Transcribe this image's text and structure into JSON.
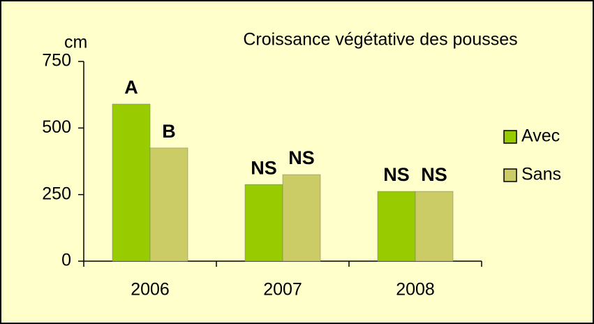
{
  "chart_data": {
    "type": "bar",
    "title": "Croissance végétative des pousses",
    "y_label": "cm",
    "categories": [
      "2006",
      "2007",
      "2008"
    ],
    "series": [
      {
        "name": "Avec",
        "color": "#99cc00",
        "values": [
          590,
          288,
          262
        ],
        "annotations": [
          "A",
          "NS",
          "NS"
        ]
      },
      {
        "name": "Sans",
        "color": "#cccc66",
        "values": [
          425,
          325,
          262
        ],
        "annotations": [
          "B",
          "NS",
          "NS"
        ]
      }
    ],
    "ylim": [
      0,
      750
    ],
    "yticks": [
      0,
      250,
      500,
      750
    ],
    "legend": "right",
    "background": "#ffffcc"
  }
}
